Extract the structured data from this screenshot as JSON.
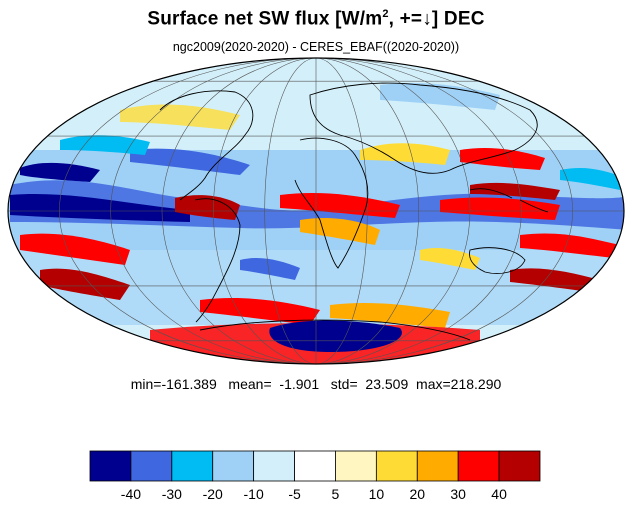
{
  "title": {
    "main": "Surface net SW flux [W/m",
    "superscript": "2",
    "tail": ", +=↓]  DEC"
  },
  "subtitle": "ngc2009(2020-2020) - CERES_EBAF((2020-2020))",
  "stats": {
    "min_label": "min=",
    "min": "-161.389",
    "mean_label": "mean=",
    "mean": " -1.901",
    "std_label": "std=",
    "std": " 23.509",
    "max_label": "max=",
    "max": "218.290"
  },
  "colorbar": {
    "colors": [
      "#00008f",
      "#3f67e0",
      "#00bcf2",
      "#9fd1f7",
      "#d3f0fa",
      "#ffffff",
      "#fff6c2",
      "#ffdc35",
      "#ffab00",
      "#fe0000",
      "#b40000"
    ],
    "tick_labels": [
      "-40",
      "-30",
      "-20",
      "-10",
      "-5",
      "5",
      "10",
      "20",
      "30",
      "40"
    ]
  },
  "map": {
    "projection": "mollweide",
    "graticule": "on",
    "coastlines": "on"
  }
}
